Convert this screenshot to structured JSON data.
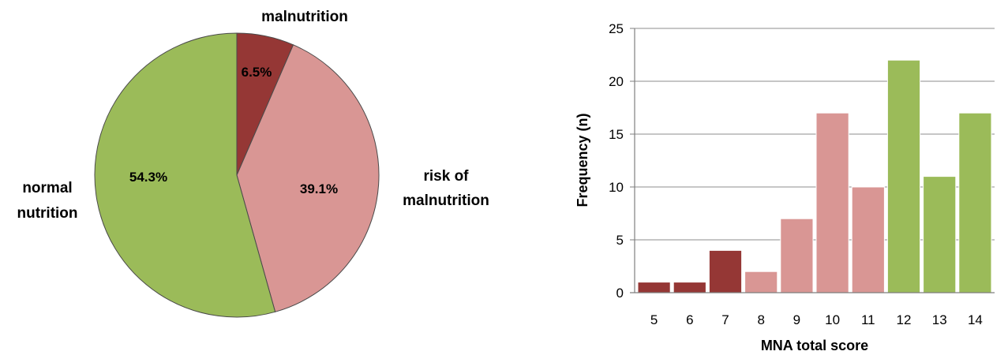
{
  "chart_data": [
    {
      "type": "pie",
      "slices": [
        {
          "label": "malnutrition",
          "value": 6.5,
          "value_label": "6.5%",
          "color": "#953735"
        },
        {
          "label": "risk of malnutrition",
          "label_lines": [
            "risk of",
            "malnutrition"
          ],
          "value": 39.1,
          "value_label": "39.1%",
          "color": "#D99694"
        },
        {
          "label": "normal nutrition",
          "label_lines": [
            "normal",
            "nutrition"
          ],
          "value": 54.3,
          "value_label": "54.3%",
          "color": "#9BBB59"
        }
      ],
      "start_angle": "12 o'clock",
      "direction": "clockwise",
      "legend": "none"
    },
    {
      "type": "bar",
      "categories": [
        "5",
        "6",
        "7",
        "8",
        "9",
        "10",
        "11",
        "12",
        "13",
        "14"
      ],
      "values": [
        1,
        1,
        4,
        2,
        7,
        17,
        10,
        22,
        11,
        17
      ],
      "bar_colors": [
        "#953735",
        "#953735",
        "#953735",
        "#D99694",
        "#D99694",
        "#D99694",
        "#D99694",
        "#9BBB59",
        "#9BBB59",
        "#9BBB59"
      ],
      "xlabel": "MNA total score",
      "ylabel": "Frequency (n)",
      "ylim": [
        0,
        25
      ],
      "yticks": [
        "0",
        "5",
        "10",
        "15",
        "20",
        "25"
      ],
      "grid": "horizontal"
    }
  ]
}
